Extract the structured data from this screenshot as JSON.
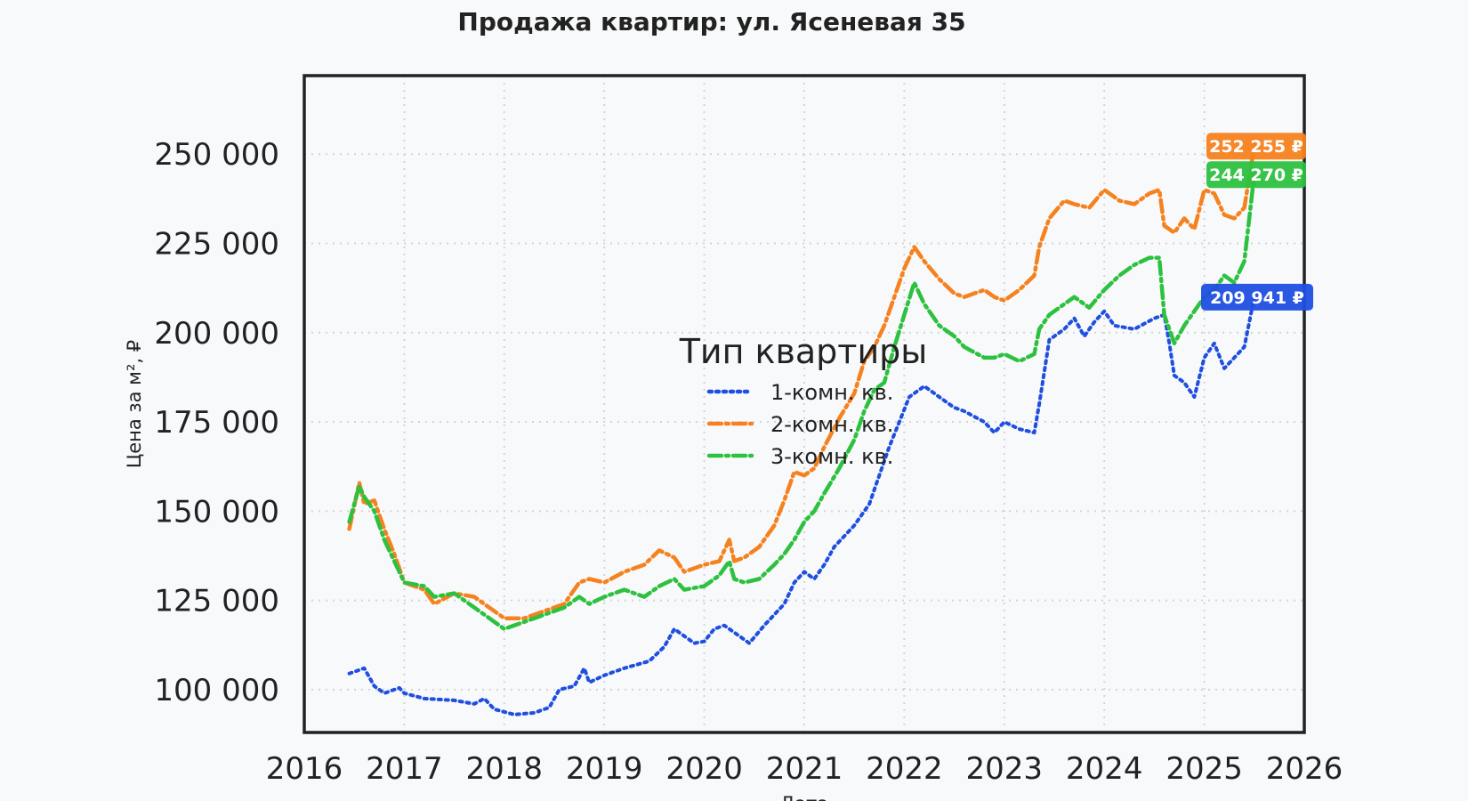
{
  "chart_data": {
    "type": "line",
    "title": "Продажа квартир: ул. Ясеневая 35",
    "xlabel": "Дата",
    "ylabel": "Цена за м², ₽",
    "xlim": [
      2016,
      2026
    ],
    "ylim": [
      88000,
      272000
    ],
    "x_ticks": [
      "2016",
      "2017",
      "2018",
      "2019",
      "2020",
      "2021",
      "2022",
      "2023",
      "2024",
      "2025",
      "2026"
    ],
    "y_ticks": [
      100000,
      125000,
      150000,
      175000,
      200000,
      225000,
      250000
    ],
    "y_tick_labels": [
      "100 000",
      "125 000",
      "150 000",
      "175 000",
      "200 000",
      "225 000",
      "250 000"
    ],
    "grid": true,
    "legend": {
      "title": "Тип квартиры",
      "placement": "center"
    },
    "series": [
      {
        "name": "1-комн. кв.",
        "color": "#1f4fe0",
        "style": "dotted",
        "x": [
          2016.45,
          2016.6,
          2016.7,
          2016.8,
          2016.95,
          2017.0,
          2017.2,
          2017.5,
          2017.7,
          2017.8,
          2017.9,
          2018.1,
          2018.3,
          2018.45,
          2018.55,
          2018.7,
          2018.8,
          2018.85,
          2019.0,
          2019.2,
          2019.45,
          2019.6,
          2019.7,
          2019.9,
          2020.0,
          2020.1,
          2020.2,
          2020.3,
          2020.45,
          2020.6,
          2020.8,
          2020.9,
          2021.0,
          2021.1,
          2021.2,
          2021.3,
          2021.5,
          2021.65,
          2021.75,
          2021.85,
          2021.95,
          2022.05,
          2022.2,
          2022.35,
          2022.5,
          2022.6,
          2022.8,
          2022.9,
          2023.0,
          2023.15,
          2023.3,
          2023.35,
          2023.45,
          2023.6,
          2023.7,
          2023.8,
          2023.9,
          2024.0,
          2024.1,
          2024.3,
          2024.5,
          2024.6,
          2024.65,
          2024.7,
          2024.8,
          2024.9,
          2025.0,
          2025.1,
          2025.2,
          2025.3,
          2025.4,
          2025.5
        ],
        "y": [
          104500,
          106000,
          101000,
          99000,
          100500,
          99000,
          97500,
          97000,
          96000,
          97500,
          94500,
          93000,
          93500,
          95000,
          100000,
          101000,
          106000,
          102000,
          104000,
          106000,
          108000,
          112000,
          117000,
          113000,
          113500,
          117000,
          118000,
          116000,
          113000,
          118000,
          124000,
          130000,
          133000,
          131000,
          135000,
          140000,
          146000,
          152000,
          160000,
          168000,
          175000,
          182000,
          185000,
          182000,
          179000,
          178000,
          175000,
          172000,
          175000,
          173000,
          172000,
          180000,
          198000,
          201000,
          204000,
          199000,
          203000,
          206000,
          202000,
          201000,
          204000,
          205000,
          197000,
          188000,
          186000,
          182000,
          193000,
          197000,
          190000,
          193000,
          196000,
          209941
        ]
      },
      {
        "name": "2-комн. кв.",
        "color": "#f5821f",
        "style": "dashdot",
        "x": [
          2016.45,
          2016.55,
          2016.6,
          2016.7,
          2016.8,
          2016.9,
          2017.0,
          2017.2,
          2017.3,
          2017.5,
          2017.7,
          2017.8,
          2018.0,
          2018.2,
          2018.4,
          2018.6,
          2018.75,
          2018.85,
          2019.0,
          2019.2,
          2019.4,
          2019.55,
          2019.7,
          2019.8,
          2020.0,
          2020.15,
          2020.25,
          2020.3,
          2020.4,
          2020.55,
          2020.7,
          2020.8,
          2020.9,
          2021.0,
          2021.1,
          2021.2,
          2021.35,
          2021.5,
          2021.6,
          2021.7,
          2021.8,
          2021.9,
          2022.0,
          2022.1,
          2022.2,
          2022.35,
          2022.5,
          2022.6,
          2022.8,
          2022.9,
          2023.0,
          2023.15,
          2023.3,
          2023.35,
          2023.45,
          2023.6,
          2023.7,
          2023.85,
          2024.0,
          2024.15,
          2024.3,
          2024.45,
          2024.55,
          2024.6,
          2024.7,
          2024.8,
          2024.9,
          2025.0,
          2025.1,
          2025.2,
          2025.3,
          2025.4,
          2025.5
        ],
        "y": [
          145000,
          158000,
          152000,
          153000,
          145000,
          138000,
          130000,
          128000,
          124000,
          127000,
          126000,
          124000,
          120000,
          120000,
          122000,
          124000,
          130000,
          131000,
          130000,
          133000,
          135000,
          139000,
          137000,
          133000,
          135000,
          136000,
          142000,
          136000,
          137000,
          140000,
          146000,
          153000,
          161000,
          160000,
          162000,
          168000,
          176000,
          183000,
          192000,
          196000,
          202000,
          210000,
          218000,
          224000,
          220000,
          215000,
          211000,
          210000,
          212000,
          210000,
          209000,
          212000,
          216000,
          224000,
          232000,
          237000,
          236000,
          235000,
          240000,
          237000,
          236000,
          239000,
          240000,
          230000,
          228000,
          232000,
          229000,
          240000,
          239000,
          233000,
          232000,
          235000,
          252255
        ]
      },
      {
        "name": "3-комн. кв.",
        "color": "#2cc13f",
        "style": "dashdot",
        "x": [
          2016.45,
          2016.55,
          2016.6,
          2016.7,
          2016.8,
          2016.9,
          2017.0,
          2017.2,
          2017.3,
          2017.5,
          2017.7,
          2017.8,
          2018.0,
          2018.2,
          2018.4,
          2018.6,
          2018.75,
          2018.85,
          2019.0,
          2019.2,
          2019.4,
          2019.55,
          2019.7,
          2019.8,
          2020.0,
          2020.15,
          2020.25,
          2020.3,
          2020.4,
          2020.55,
          2020.7,
          2020.8,
          2020.9,
          2021.0,
          2021.1,
          2021.2,
          2021.35,
          2021.5,
          2021.6,
          2021.7,
          2021.8,
          2021.9,
          2022.0,
          2022.1,
          2022.2,
          2022.35,
          2022.5,
          2022.6,
          2022.8,
          2022.9,
          2023.0,
          2023.15,
          2023.3,
          2023.35,
          2023.45,
          2023.6,
          2023.7,
          2023.85,
          2024.0,
          2024.15,
          2024.3,
          2024.45,
          2024.55,
          2024.6,
          2024.7,
          2024.8,
          2024.9,
          2025.0,
          2025.1,
          2025.2,
          2025.3,
          2025.4,
          2025.5
        ],
        "y": [
          147000,
          157000,
          154000,
          150000,
          142000,
          136000,
          130000,
          129000,
          126000,
          127000,
          123000,
          121000,
          117000,
          119000,
          121000,
          123000,
          126000,
          124000,
          126000,
          128000,
          126000,
          129000,
          131000,
          128000,
          129000,
          132000,
          136000,
          131000,
          130000,
          131000,
          135000,
          138000,
          142000,
          147000,
          150000,
          155000,
          162000,
          170000,
          178000,
          184000,
          186000,
          196000,
          205000,
          214000,
          208000,
          202000,
          199000,
          196000,
          193000,
          193000,
          194000,
          192000,
          194000,
          201000,
          205000,
          208000,
          210000,
          207000,
          212000,
          216000,
          219000,
          221000,
          221000,
          205000,
          197000,
          202000,
          206000,
          210000,
          212000,
          216000,
          214000,
          220000,
          244270
        ]
      }
    ],
    "annotations": [
      {
        "text": "252 255 ₽",
        "value": 252255,
        "color": "#f5821f"
      },
      {
        "text": "244 270 ₽",
        "value": 244270,
        "color": "#2cc13f"
      },
      {
        "text": "209 941 ₽",
        "value": 209941,
        "color": "#1f4fe0"
      }
    ]
  }
}
